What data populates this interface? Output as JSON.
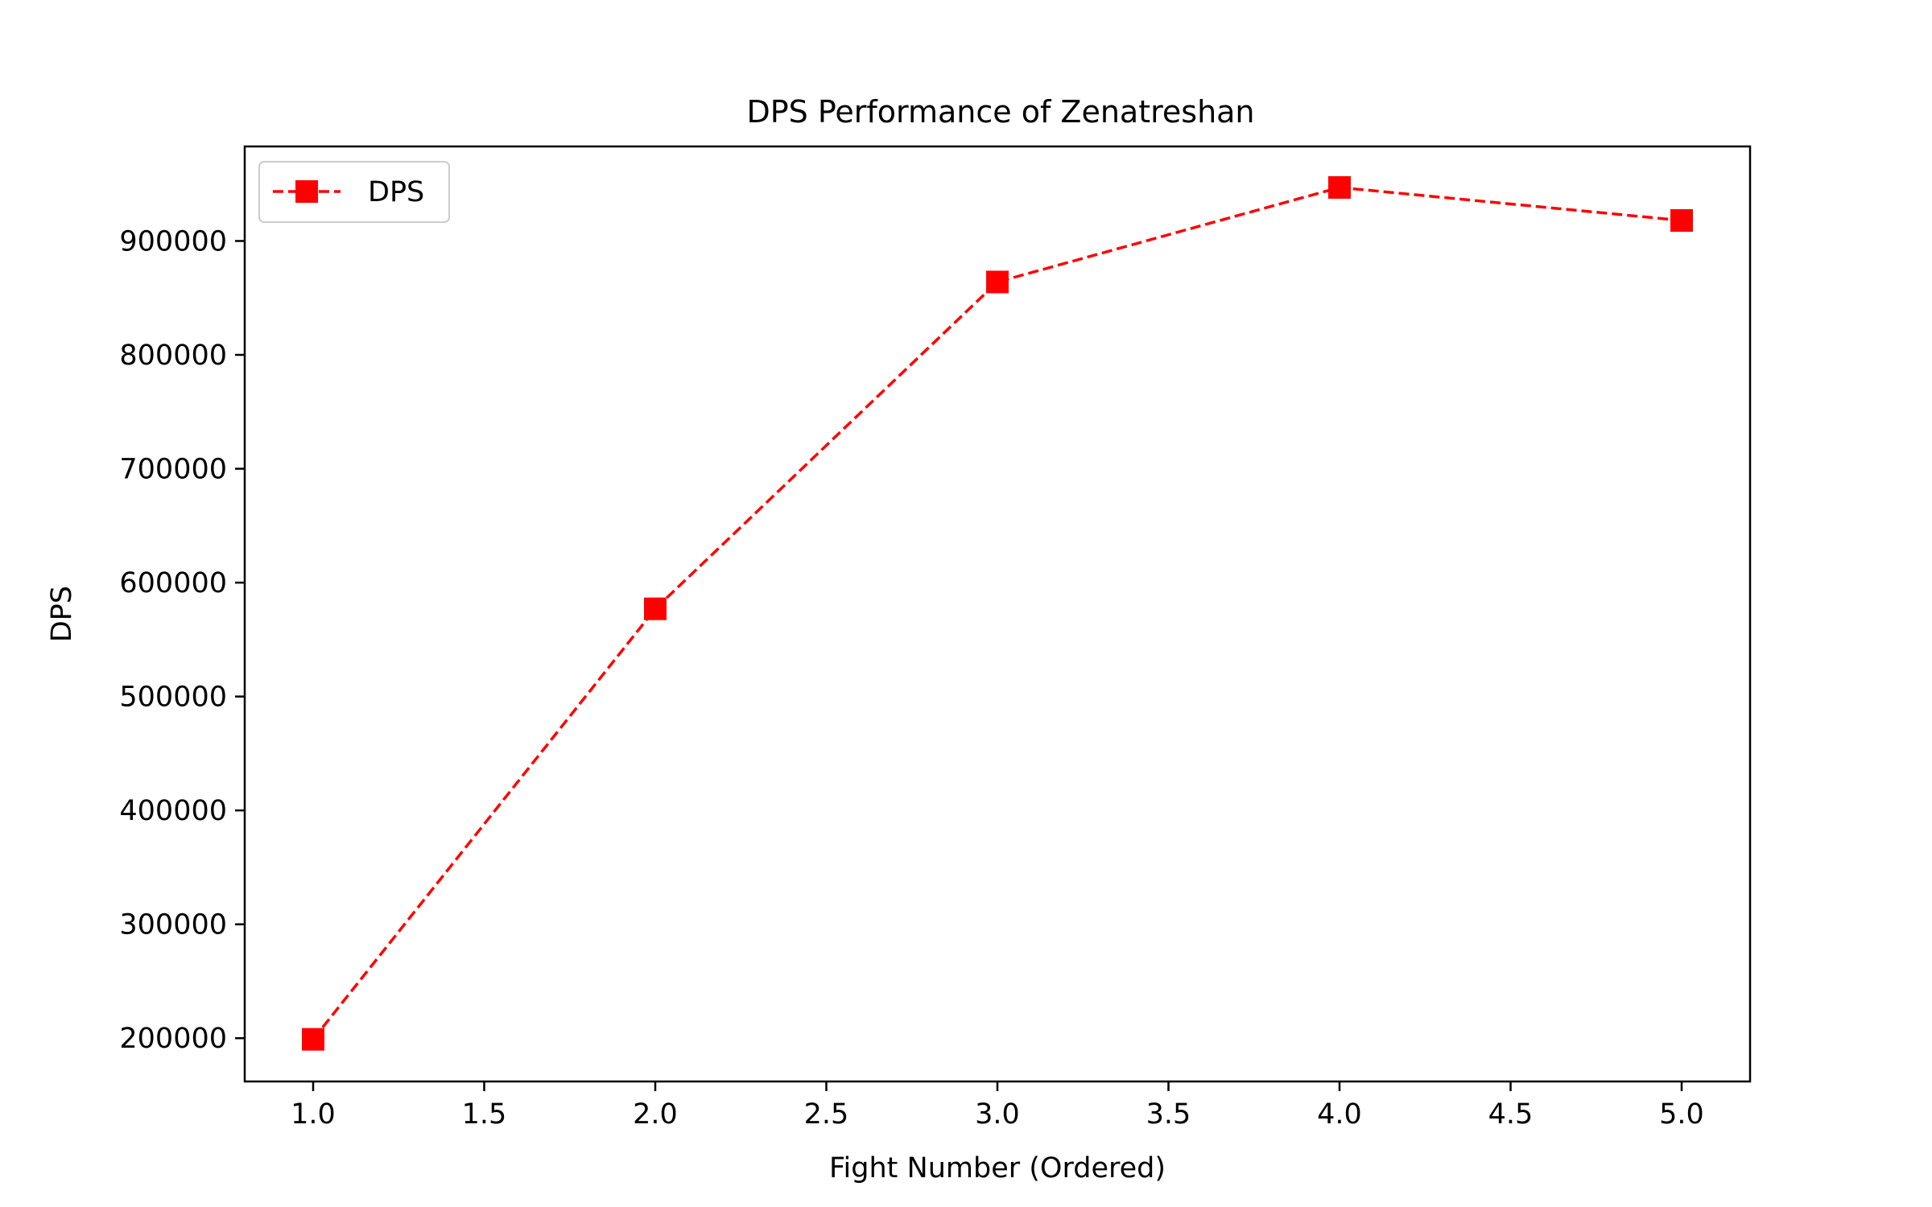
{
  "chart_data": {
    "type": "line",
    "title": "DPS Performance of Zenatreshan",
    "xlabel": "Fight Number (Ordered)",
    "ylabel": "DPS",
    "xlim": [
      0.8,
      5.2
    ],
    "ylim": [
      162000,
      983000
    ],
    "x_ticks": [
      1.0,
      1.5,
      2.0,
      2.5,
      3.0,
      3.5,
      4.0,
      4.5,
      5.0
    ],
    "x_tick_labels": [
      "1.0",
      "1.5",
      "2.0",
      "2.5",
      "3.0",
      "3.5",
      "4.0",
      "4.5",
      "5.0"
    ],
    "y_ticks": [
      200000,
      300000,
      400000,
      500000,
      600000,
      700000,
      800000,
      900000
    ],
    "y_tick_labels": [
      "200000",
      "300000",
      "400000",
      "500000",
      "600000",
      "700000",
      "800000",
      "900000"
    ],
    "grid": false,
    "legend_position": "upper-left",
    "series": [
      {
        "name": "DPS",
        "color": "#ff0000",
        "line_style": "dashed",
        "marker": "square",
        "x": [
          1,
          2,
          3,
          4,
          5
        ],
        "y": [
          199000,
          577000,
          864000,
          947000,
          918000
        ]
      }
    ]
  }
}
